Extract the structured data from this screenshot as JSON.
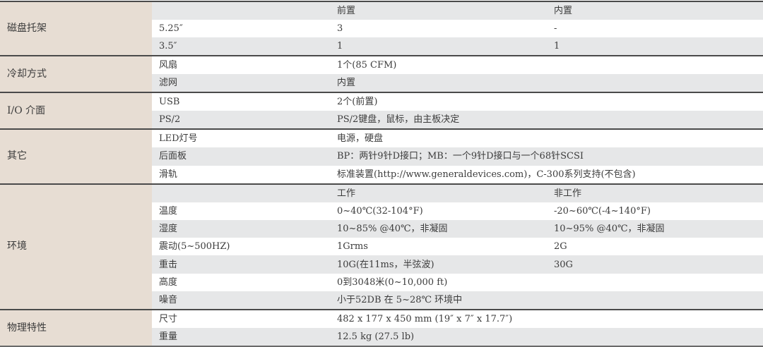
{
  "groups": [
    {
      "label": "磁盘托架",
      "rows": [
        {
          "c1": "",
          "c2": "前置",
          "c3": "内置",
          "shade": "gray"
        },
        {
          "c1": "5.25″",
          "c2": "3",
          "c3": "-",
          "shade": "white"
        },
        {
          "c1": "3.5″",
          "c2": "1",
          "c3": "1",
          "shade": "gray"
        }
      ]
    },
    {
      "label": "冷却方式",
      "rows": [
        {
          "c1": "风扇",
          "c2": "1个(85 CFM)",
          "c3": "",
          "shade": "white"
        },
        {
          "c1": "滤网",
          "c2": "内置",
          "c3": "",
          "shade": "gray"
        }
      ]
    },
    {
      "label": "I/O 介面",
      "rows": [
        {
          "c1": "USB",
          "c2": "2个(前置)",
          "c3": "",
          "shade": "white"
        },
        {
          "c1": "PS/2",
          "c2": "PS/2键盘，鼠标，由主板决定",
          "c3": "",
          "shade": "gray"
        }
      ]
    },
    {
      "label": "其它",
      "rows": [
        {
          "c1": "LED灯号",
          "c2": "电源，硬盘",
          "c3": "",
          "shade": "white"
        },
        {
          "c1": "后面板",
          "c2": "BP：两针9针D接口；MB：一个9针D接口与一个68针SCSI",
          "c3": "",
          "shade": "gray"
        },
        {
          "c1": "滑轨",
          "c2": "标准装置(http://www.generaldevices.com)，C-300系列支持(不包含)",
          "c3": "",
          "shade": "white"
        }
      ]
    },
    {
      "label": "环境",
      "rows": [
        {
          "c1": "",
          "c2": "工作",
          "c3": "非工作",
          "shade": "gray"
        },
        {
          "c1": "温度",
          "c2": "0~40℃(32-104°F)",
          "c3": "-20~60℃(-4~140°F)",
          "shade": "white"
        },
        {
          "c1": "湿度",
          "c2": "10~85% @40℃，非凝固",
          "c3": "10~95% @40℃，非凝固",
          "shade": "gray"
        },
        {
          "c1": "震动(5~500HZ)",
          "c2": "1Grms",
          "c3": "2G",
          "shade": "white"
        },
        {
          "c1": "重击",
          "c2": "10G(在11ms，半弦波)",
          "c3": "30G",
          "shade": "gray"
        },
        {
          "c1": "高度",
          "c2": "0到3048米(0~10,000 ft)",
          "c3": "",
          "shade": "white"
        },
        {
          "c1": "噪音",
          "c2": "小于52DB 在 5~28℃ 环境中",
          "c3": "",
          "shade": "gray"
        }
      ]
    },
    {
      "label": "物理特性",
      "rows": [
        {
          "c1": "尺寸",
          "c2": "482 x 177 x 450 mm (19″ x 7″ x 17.7″)",
          "c3": "",
          "shade": "white"
        },
        {
          "c1": "重量",
          "c2": "12.5 kg (27.5 lb)",
          "c3": "",
          "shade": "gray"
        }
      ]
    }
  ]
}
